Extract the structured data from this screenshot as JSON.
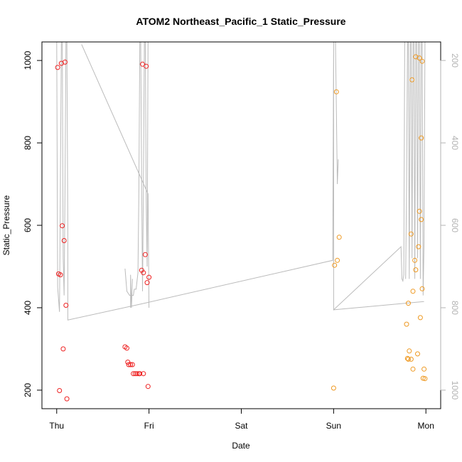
{
  "chart_data": {
    "type": "scatter",
    "title": "ATOM2 Northeast_Pacific_1 Static_Pressure",
    "xlabel": "Date",
    "ylabel": "Static_Pressure",
    "x_ticks": [
      {
        "day": 0,
        "label": "Thu"
      },
      {
        "day": 1,
        "label": "Fri"
      },
      {
        "day": 2,
        "label": "Sat"
      },
      {
        "day": 3,
        "label": "Sun"
      },
      {
        "day": 4,
        "label": "Mon"
      }
    ],
    "xlim": [
      -0.16,
      4.16
    ],
    "ylim": [
      155,
      1045
    ],
    "y_ticks": [
      200,
      400,
      600,
      800,
      1000
    ],
    "y2_ticks": [
      200,
      400,
      600,
      800,
      1000
    ],
    "y2lim": [
      1045,
      155
    ],
    "colors": {
      "red": "#ee2222",
      "orange": "#ee9922",
      "line": "#bbbbbb",
      "axis": "#000000",
      "axis2": "#b3b3b3"
    },
    "series": [
      {
        "color": "red",
        "points": [
          [
            0.01,
            983
          ],
          [
            0.05,
            993
          ],
          [
            0.09,
            996
          ],
          [
            0.02,
            482
          ],
          [
            0.04,
            480
          ],
          [
            0.06,
            599
          ],
          [
            0.08,
            563
          ],
          [
            0.1,
            406
          ],
          [
            0.07,
            300
          ],
          [
            0.03,
            199
          ],
          [
            0.11,
            179
          ],
          [
            0.74,
            305
          ],
          [
            0.76,
            302
          ],
          [
            0.77,
            268
          ],
          [
            0.78,
            262
          ],
          [
            0.8,
            262
          ],
          [
            0.82,
            262
          ],
          [
            0.83,
            240
          ],
          [
            0.85,
            240
          ],
          [
            0.87,
            240
          ],
          [
            0.89,
            240
          ],
          [
            0.9,
            240
          ],
          [
            0.94,
            240
          ],
          [
            0.93,
            991
          ],
          [
            0.97,
            986
          ],
          [
            0.92,
            491
          ],
          [
            0.94,
            485
          ],
          [
            0.96,
            529
          ],
          [
            0.98,
            461
          ],
          [
            1.0,
            474
          ],
          [
            0.99,
            209
          ]
        ]
      },
      {
        "color": "orange",
        "points": [
          [
            3.03,
            924
          ],
          [
            3.01,
            503
          ],
          [
            3.04,
            515
          ],
          [
            3.06,
            571
          ],
          [
            3.0,
            205
          ],
          [
            3.85,
            953
          ],
          [
            3.89,
            1009
          ],
          [
            3.93,
            1006
          ],
          [
            3.96,
            998
          ],
          [
            3.95,
            812
          ],
          [
            3.93,
            634
          ],
          [
            3.95,
            614
          ],
          [
            3.84,
            579
          ],
          [
            3.88,
            515
          ],
          [
            3.89,
            492
          ],
          [
            3.92,
            548
          ],
          [
            3.96,
            446
          ],
          [
            3.86,
            440
          ],
          [
            3.81,
            411
          ],
          [
            3.94,
            376
          ],
          [
            3.79,
            360
          ],
          [
            3.82,
            295
          ],
          [
            3.8,
            277
          ],
          [
            3.81,
            275
          ],
          [
            3.84,
            275
          ],
          [
            3.91,
            288
          ],
          [
            3.86,
            251
          ],
          [
            3.98,
            251
          ],
          [
            3.97,
            229
          ],
          [
            3.99,
            228
          ]
        ]
      }
    ],
    "track": [
      [
        [
          0.27,
          1039
        ],
        [
          0.99,
          676
        ],
        [
          1.0,
          400
        ]
      ],
      [
        [
          0.0,
          1045
        ],
        [
          0.01,
          450
        ],
        [
          0.03,
          390
        ],
        [
          0.04,
          700
        ],
        [
          0.05,
          1045
        ]
      ],
      [
        [
          0.06,
          1045
        ],
        [
          0.07,
          520
        ],
        [
          0.08,
          430
        ],
        [
          0.09,
          700
        ],
        [
          0.1,
          1045
        ]
      ],
      [
        [
          0.11,
          1045
        ],
        [
          0.12,
          600
        ],
        [
          0.12,
          370
        ],
        [
          0.93,
          410
        ],
        [
          2.99,
          515
        ],
        [
          3.0,
          1045
        ],
        [
          3.0,
          395
        ],
        [
          3.73,
          548
        ],
        [
          3.74,
          470
        ],
        [
          3.75,
          465
        ],
        [
          3.76,
          480
        ],
        [
          3.77,
          1045
        ]
      ],
      [
        [
          0.74,
          495
        ],
        [
          0.76,
          440
        ],
        [
          0.79,
          430
        ],
        [
          0.83,
          430
        ],
        [
          0.84,
          445
        ],
        [
          0.86,
          445
        ],
        [
          0.88,
          485
        ],
        [
          0.89,
          690
        ],
        [
          0.9,
          1045
        ],
        [
          0.91,
          1045
        ],
        [
          0.92,
          700
        ],
        [
          0.93,
          440
        ],
        [
          0.94,
          700
        ],
        [
          0.95,
          1045
        ],
        [
          0.96,
          1045
        ],
        [
          0.97,
          660
        ],
        [
          0.98,
          500
        ],
        [
          0.99,
          1045
        ]
      ],
      [
        [
          0.8,
          400
        ],
        [
          0.8,
          480
        ],
        [
          0.81,
          400
        ],
        [
          0.82,
          470
        ]
      ],
      [
        [
          3.02,
          1045
        ],
        [
          3.04,
          700
        ],
        [
          3.05,
          760
        ]
      ],
      [
        [
          3.78,
          470
        ],
        [
          3.79,
          700
        ],
        [
          3.8,
          1045
        ],
        [
          3.81,
          1045
        ],
        [
          3.82,
          470
        ],
        [
          3.83,
          1045
        ],
        [
          3.84,
          1045
        ],
        [
          3.85,
          520
        ],
        [
          3.86,
          1045
        ],
        [
          3.87,
          1045
        ],
        [
          3.88,
          470
        ],
        [
          3.89,
          1045
        ],
        [
          3.9,
          1045
        ],
        [
          3.91,
          520
        ],
        [
          3.92,
          1045
        ],
        [
          3.93,
          1045
        ],
        [
          3.94,
          470
        ],
        [
          3.95,
          1045
        ],
        [
          3.96,
          1045
        ],
        [
          3.97,
          430
        ],
        [
          3.98,
          560
        ],
        [
          3.99,
          1045
        ]
      ],
      [
        [
          3.0,
          395
        ],
        [
          3.98,
          415
        ]
      ]
    ]
  }
}
